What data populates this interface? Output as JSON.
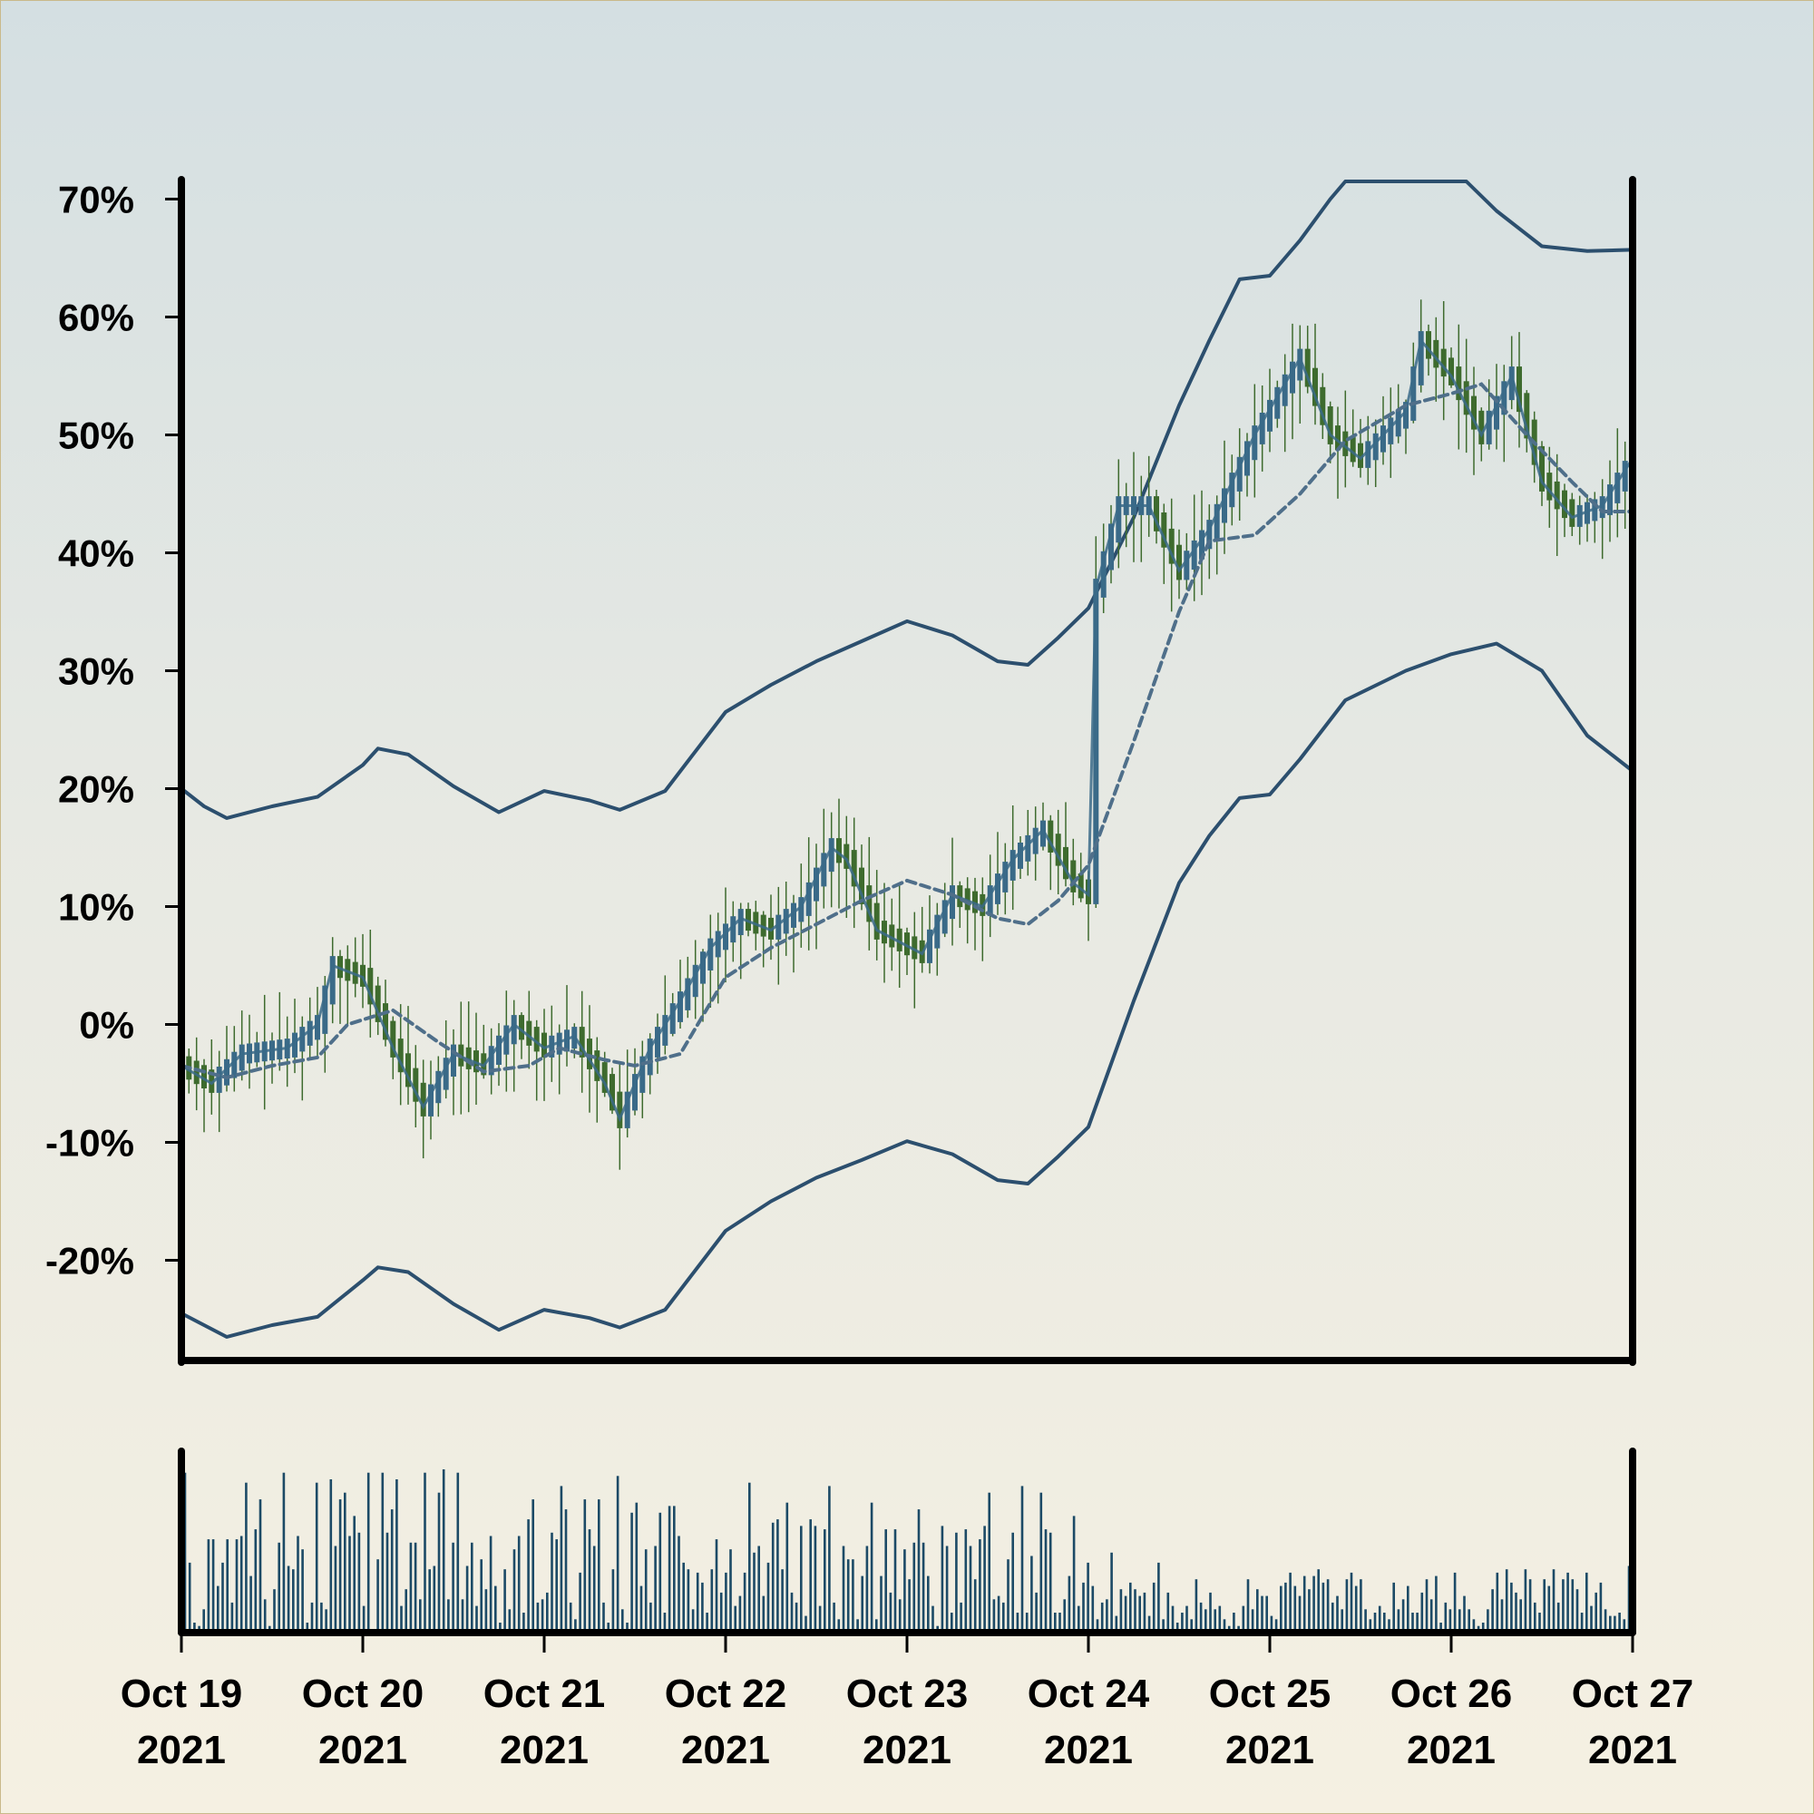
{
  "colors": {
    "band": "#2c4f6e",
    "ma": "#4f6f8a",
    "candle_green": "#3e6b2e",
    "candle_blue": "#3a6a88",
    "volume": "#1c4a66",
    "axis": "#000000"
  },
  "chart_data": {
    "type": "candlestick",
    "title": "",
    "xlabel": "",
    "ylabel": "",
    "ylim": [
      -28.5,
      71.5
    ],
    "y_ticks": [
      70,
      60,
      50,
      40,
      30,
      20,
      10,
      0,
      -10,
      -20
    ],
    "y_tick_labels": [
      "70%",
      "60%",
      "50%",
      "40%",
      "30%",
      "20%",
      "10%",
      "0%",
      "-10%",
      "-20%"
    ],
    "x_range": [
      "2021-10-19",
      "2021-10-27"
    ],
    "x_ticks": [
      {
        "date": "2021-10-19",
        "line1": "Oct 19",
        "line2": "2021"
      },
      {
        "date": "2021-10-20",
        "line1": "Oct 20",
        "line2": "2021"
      },
      {
        "date": "2021-10-21",
        "line1": "Oct 21",
        "line2": "2021"
      },
      {
        "date": "2021-10-22",
        "line1": "Oct 22",
        "line2": "2021"
      },
      {
        "date": "2021-10-23",
        "line1": "Oct 23",
        "line2": "2021"
      },
      {
        "date": "2021-10-24",
        "line1": "Oct 24",
        "line2": "2021"
      },
      {
        "date": "2021-10-25",
        "line1": "Oct 25",
        "line2": "2021"
      },
      {
        "date": "2021-10-26",
        "line1": "Oct 26",
        "line2": "2021"
      },
      {
        "date": "2021-10-27",
        "line1": "Oct 27",
        "line2": "2021"
      }
    ],
    "grid": false,
    "legend": "none",
    "series": [
      {
        "kind": "upper_band",
        "points": [
          [
            "2021-10-19 00:00",
            20
          ],
          [
            "2021-10-19 03:00",
            18.5
          ],
          [
            "2021-10-19 06:00",
            17.5
          ],
          [
            "2021-10-19 12:00",
            18.5
          ],
          [
            "2021-10-19 18:00",
            19.3
          ],
          [
            "2021-10-20 00:00",
            22
          ],
          [
            "2021-10-20 02:00",
            23.4
          ],
          [
            "2021-10-20 06:00",
            22.9
          ],
          [
            "2021-10-20 12:00",
            20.2
          ],
          [
            "2021-10-20 18:00",
            18
          ],
          [
            "2021-10-21 00:00",
            19.8
          ],
          [
            "2021-10-21 06:00",
            19
          ],
          [
            "2021-10-21 10:00",
            18.2
          ],
          [
            "2021-10-21 16:00",
            19.8
          ],
          [
            "2021-10-22 00:00",
            26.5
          ],
          [
            "2021-10-22 06:00",
            28.8
          ],
          [
            "2021-10-22 12:00",
            30.8
          ],
          [
            "2021-10-22 18:00",
            32.5
          ],
          [
            "2021-10-23 00:00",
            34.2
          ],
          [
            "2021-10-23 06:00",
            33
          ],
          [
            "2021-10-23 12:00",
            30.8
          ],
          [
            "2021-10-23 16:00",
            30.5
          ],
          [
            "2021-10-23 20:00",
            32.8
          ],
          [
            "2021-10-24 00:00",
            35.3
          ],
          [
            "2021-10-24 06:00",
            43
          ],
          [
            "2021-10-24 12:00",
            52.5
          ],
          [
            "2021-10-24 16:00",
            58
          ],
          [
            "2021-10-24 20:00",
            63.2
          ],
          [
            "2021-10-25 00:00",
            63.5
          ],
          [
            "2021-10-25 04:00",
            66.5
          ],
          [
            "2021-10-25 08:00",
            70
          ],
          [
            "2021-10-25 10:00",
            71.5
          ],
          [
            "2021-10-26 02:00",
            71.5
          ],
          [
            "2021-10-26 06:00",
            69
          ],
          [
            "2021-10-26 12:00",
            66
          ],
          [
            "2021-10-26 18:00",
            65.6
          ],
          [
            "2021-10-27 00:00",
            65.7
          ]
        ]
      },
      {
        "kind": "lower_band",
        "points": [
          [
            "2021-10-19 00:00",
            -24.5
          ],
          [
            "2021-10-19 03:00",
            -25.5
          ],
          [
            "2021-10-19 06:00",
            -26.5
          ],
          [
            "2021-10-19 12:00",
            -25.5
          ],
          [
            "2021-10-19 18:00",
            -24.8
          ],
          [
            "2021-10-20 00:00",
            -21.7
          ],
          [
            "2021-10-20 02:00",
            -20.6
          ],
          [
            "2021-10-20 06:00",
            -21
          ],
          [
            "2021-10-20 12:00",
            -23.7
          ],
          [
            "2021-10-20 18:00",
            -25.9
          ],
          [
            "2021-10-21 00:00",
            -24.2
          ],
          [
            "2021-10-21 06:00",
            -24.9
          ],
          [
            "2021-10-21 10:00",
            -25.7
          ],
          [
            "2021-10-21 16:00",
            -24.2
          ],
          [
            "2021-10-22 00:00",
            -17.5
          ],
          [
            "2021-10-22 06:00",
            -15
          ],
          [
            "2021-10-22 12:00",
            -13
          ],
          [
            "2021-10-22 18:00",
            -11.5
          ],
          [
            "2021-10-23 00:00",
            -9.9
          ],
          [
            "2021-10-23 06:00",
            -11
          ],
          [
            "2021-10-23 12:00",
            -13.2
          ],
          [
            "2021-10-23 16:00",
            -13.5
          ],
          [
            "2021-10-23 20:00",
            -11.2
          ],
          [
            "2021-10-24 00:00",
            -8.7
          ],
          [
            "2021-10-24 06:00",
            2
          ],
          [
            "2021-10-24 12:00",
            12
          ],
          [
            "2021-10-24 16:00",
            16
          ],
          [
            "2021-10-24 20:00",
            19.2
          ],
          [
            "2021-10-25 00:00",
            19.5
          ],
          [
            "2021-10-25 04:00",
            22.5
          ],
          [
            "2021-10-25 10:00",
            27.5
          ],
          [
            "2021-10-25 18:00",
            30
          ],
          [
            "2021-10-26 00:00",
            31.4
          ],
          [
            "2021-10-26 06:00",
            32.3
          ],
          [
            "2021-10-26 12:00",
            30
          ],
          [
            "2021-10-26 18:00",
            24.5
          ],
          [
            "2021-10-27 00:00",
            21.5
          ]
        ]
      },
      {
        "kind": "moving_average",
        "points": [
          [
            "2021-10-19 00:00",
            -3.5
          ],
          [
            "2021-10-19 06:00",
            -4.5
          ],
          [
            "2021-10-19 12:00",
            -3.5
          ],
          [
            "2021-10-19 18:00",
            -2.8
          ],
          [
            "2021-10-19 22:00",
            0
          ],
          [
            "2021-10-20 04:00",
            1.2
          ],
          [
            "2021-10-20 10:00",
            -1.5
          ],
          [
            "2021-10-20 16:00",
            -4
          ],
          [
            "2021-10-20 22:00",
            -3.5
          ],
          [
            "2021-10-21 02:00",
            -2
          ],
          [
            "2021-10-21 08:00",
            -3
          ],
          [
            "2021-10-21 12:00",
            -3.5
          ],
          [
            "2021-10-21 18:00",
            -2.5
          ],
          [
            "2021-10-22 00:00",
            4
          ],
          [
            "2021-10-22 06:00",
            6.5
          ],
          [
            "2021-10-22 12:00",
            8.5
          ],
          [
            "2021-10-22 18:00",
            10.5
          ],
          [
            "2021-10-23 00:00",
            12.2
          ],
          [
            "2021-10-23 06:00",
            11
          ],
          [
            "2021-10-23 12:00",
            9
          ],
          [
            "2021-10-23 16:00",
            8.5
          ],
          [
            "2021-10-23 20:00",
            10.5
          ],
          [
            "2021-10-24 00:00",
            13.5
          ],
          [
            "2021-10-24 06:00",
            24
          ],
          [
            "2021-10-24 12:00",
            35
          ],
          [
            "2021-10-24 16:00",
            41
          ],
          [
            "2021-10-24 22:00",
            41.5
          ],
          [
            "2021-10-25 04:00",
            45
          ],
          [
            "2021-10-25 10:00",
            49.5
          ],
          [
            "2021-10-25 18:00",
            52.5
          ],
          [
            "2021-10-26 00:00",
            53.5
          ],
          [
            "2021-10-26 04:00",
            54.3
          ],
          [
            "2021-10-26 10:00",
            50
          ],
          [
            "2021-10-26 16:00",
            46
          ],
          [
            "2021-10-26 20:00",
            43.5
          ],
          [
            "2021-10-27 00:00",
            43.5
          ]
        ]
      },
      {
        "kind": "price",
        "points": [
          [
            "2021-10-19 00:00",
            -3.5
          ],
          [
            "2021-10-19 04:00",
            -5
          ],
          [
            "2021-10-19 08:00",
            -2.5
          ],
          [
            "2021-10-19 14:00",
            -2
          ],
          [
            "2021-10-19 18:00",
            0
          ],
          [
            "2021-10-19 20:00",
            5
          ],
          [
            "2021-10-20 00:00",
            4
          ],
          [
            "2021-10-20 04:00",
            -2
          ],
          [
            "2021-10-20 08:00",
            -7
          ],
          [
            "2021-10-20 12:00",
            -2.5
          ],
          [
            "2021-10-20 16:00",
            -3.5
          ],
          [
            "2021-10-20 20:00",
            0
          ],
          [
            "2021-10-21 00:00",
            -2
          ],
          [
            "2021-10-21 04:00",
            -1
          ],
          [
            "2021-10-21 08:00",
            -5
          ],
          [
            "2021-10-21 10:00",
            -8
          ],
          [
            "2021-10-21 14:00",
            -2
          ],
          [
            "2021-10-21 18:00",
            2
          ],
          [
            "2021-10-21 22:00",
            6.5
          ],
          [
            "2021-10-22 02:00",
            9
          ],
          [
            "2021-10-22 06:00",
            8
          ],
          [
            "2021-10-22 10:00",
            10
          ],
          [
            "2021-10-22 14:00",
            15
          ],
          [
            "2021-10-22 16:00",
            14
          ],
          [
            "2021-10-22 20:00",
            8
          ],
          [
            "2021-10-23 02:00",
            6
          ],
          [
            "2021-10-23 06:00",
            11
          ],
          [
            "2021-10-23 10:00",
            10
          ],
          [
            "2021-10-23 14:00",
            14
          ],
          [
            "2021-10-23 18:00",
            16.5
          ],
          [
            "2021-10-23 22:00",
            12
          ],
          [
            "2021-10-24 00:00",
            11
          ],
          [
            "2021-10-24 01:00",
            37
          ],
          [
            "2021-10-24 04:00",
            44
          ],
          [
            "2021-10-24 08:00",
            44
          ],
          [
            "2021-10-24 12:00",
            38.5
          ],
          [
            "2021-10-24 16:00",
            42
          ],
          [
            "2021-10-24 22:00",
            50
          ],
          [
            "2021-10-25 04:00",
            56.5
          ],
          [
            "2021-10-25 08:00",
            50
          ],
          [
            "2021-10-25 12:00",
            48
          ],
          [
            "2021-10-25 18:00",
            52
          ],
          [
            "2021-10-25 20:00",
            58
          ],
          [
            "2021-10-26 00:00",
            55
          ],
          [
            "2021-10-26 04:00",
            50
          ],
          [
            "2021-10-26 08:00",
            55
          ],
          [
            "2021-10-26 12:00",
            46
          ],
          [
            "2021-10-26 16:00",
            43
          ],
          [
            "2021-10-26 20:00",
            44
          ],
          [
            "2021-10-27 00:00",
            48
          ]
        ]
      }
    ],
    "volume": [
      96,
      42,
      6,
      4,
      14,
      56,
      56,
      28,
      42,
      56,
      18,
      56,
      58,
      90,
      34,
      62,
      80,
      20,
      4,
      26,
      54,
      96,
      40,
      38,
      58,
      50,
      6,
      18,
      90,
      18,
      14,
      92,
      52,
      80,
      84,
      58,
      70,
      60,
      16,
      96,
      2,
      44,
      96,
      60,
      74,
      92,
      16,
      26,
      54,
      54,
      20,
      96,
      38,
      40,
      84,
      98,
      20,
      54,
      96,
      20,
      40,
      54,
      16,
      44,
      26,
      58,
      28,
      6,
      38,
      14,
      50,
      58,
      12,
      68,
      80,
      18,
      20,
      24,
      60,
      56,
      88,
      74,
      18,
      8,
      36,
      80,
      62,
      52,
      80,
      18,
      6,
      38,
      94,
      14,
      6,
      72,
      78,
      28,
      50,
      18,
      52,
      72,
      12,
      76,
      76,
      58,
      42,
      38,
      14,
      36,
      30,
      12,
      38,
      56,
      24,
      36,
      50,
      16,
      22,
      36,
      90,
      48,
      52,
      22,
      42,
      66,
      68,
      38,
      78,
      24,
      18,
      64,
      10,
      68,
      64,
      16,
      62,
      88,
      18,
      8,
      52,
      44,
      44,
      8,
      34,
      52,
      78,
      8,
      34,
      62,
      24,
      62,
      20,
      50,
      32,
      54,
      74,
      54,
      34,
      16,
      4,
      64,
      52,
      12,
      60,
      18,
      62,
      52,
      32,
      56,
      64,
      84,
      20,
      22,
      18,
      44,
      60,
      12,
      88,
      12,
      46,
      24,
      84,
      62,
      60,
      12,
      12,
      20,
      34,
      70,
      16,
      30,
      42,
      28,
      8,
      18,
      20,
      48,
      10,
      26,
      22,
      30,
      26,
      22,
      24,
      10,
      30,
      42,
      8,
      24,
      16,
      6,
      12,
      16,
      8,
      32,
      18,
      14,
      24,
      14,
      16,
      8,
      4,
      12,
      4,
      16,
      32,
      14,
      26,
      22,
      22,
      10,
      8,
      28,
      30,
      36,
      28,
      22,
      34,
      26,
      34,
      38,
      30,
      32,
      18,
      22,
      14,
      32,
      36,
      28,
      32,
      14,
      8,
      12,
      16,
      12,
      8,
      30,
      14,
      20,
      28,
      12,
      12,
      24,
      32,
      20,
      34,
      6,
      18,
      14,
      36,
      14,
      22,
      14,
      8,
      4,
      6,
      14,
      26,
      36,
      20,
      38,
      30,
      24,
      20,
      38,
      32,
      18,
      12,
      32,
      28,
      38,
      18,
      32,
      36,
      32,
      26,
      12,
      36,
      16,
      24,
      30,
      14,
      10,
      10,
      12,
      8,
      40
    ]
  }
}
